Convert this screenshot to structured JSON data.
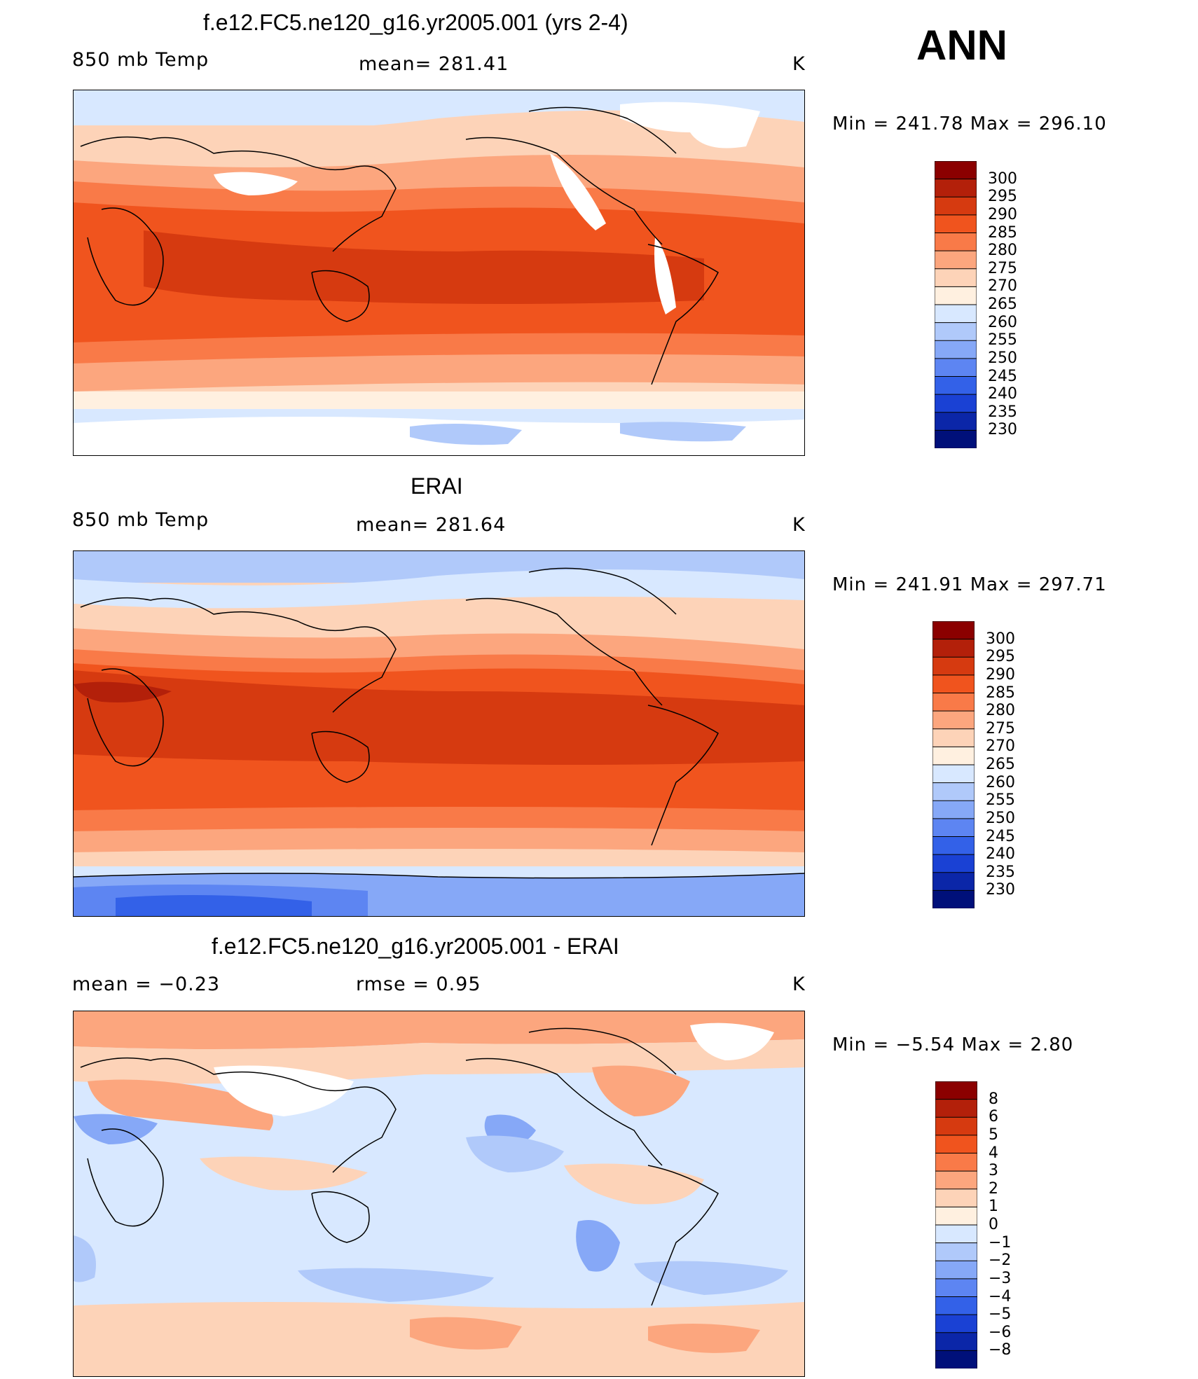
{
  "season": "ANN",
  "units_label": "K",
  "panels": [
    {
      "title": "f.e12.FC5.ne120_g16.yr2005.001 (yrs 2-4)",
      "left_label": "850 mb Temp",
      "center_label": "mean= 281.41",
      "right_label": "K",
      "minmax": "Min = 241.78 Max = 296.10",
      "colorbar_ticks": [
        "300",
        "295",
        "290",
        "285",
        "280",
        "275",
        "270",
        "265",
        "260",
        "255",
        "250",
        "245",
        "240",
        "235",
        "230"
      ],
      "colorbar_colors": [
        "#8b0000",
        "#b3200a",
        "#d63a10",
        "#f0541e",
        "#f97a48",
        "#fca67e",
        "#fdd3b8",
        "#fff0e0",
        "#d8e8ff",
        "#b0c9fa",
        "#86a8f7",
        "#5d85f2",
        "#3361e8",
        "#1a41d4",
        "#0b26a8",
        "#00107a"
      ]
    },
    {
      "title": "ERAI",
      "left_label": "850 mb Temp",
      "center_label": "mean= 281.64",
      "right_label": "K",
      "minmax": "Min = 241.91 Max = 297.71",
      "colorbar_ticks": [
        "300",
        "295",
        "290",
        "285",
        "280",
        "275",
        "270",
        "265",
        "260",
        "255",
        "250",
        "245",
        "240",
        "235",
        "230"
      ],
      "colorbar_colors": [
        "#8b0000",
        "#b3200a",
        "#d63a10",
        "#f0541e",
        "#f97a48",
        "#fca67e",
        "#fdd3b8",
        "#fff0e0",
        "#d8e8ff",
        "#b0c9fa",
        "#86a8f7",
        "#5d85f2",
        "#3361e8",
        "#1a41d4",
        "#0b26a8",
        "#00107a"
      ]
    },
    {
      "title": "f.e12.FC5.ne120_g16.yr2005.001 - ERAI",
      "left_label": "mean =   −0.23",
      "center_label": "rmse =    0.95",
      "right_label": "K",
      "minmax": "Min =   −5.54 Max =     2.80",
      "colorbar_ticks": [
        "8",
        "6",
        "5",
        "4",
        "3",
        "2",
        "1",
        "0",
        "−1",
        "−2",
        "−3",
        "−4",
        "−5",
        "−6",
        "−8"
      ],
      "colorbar_colors": [
        "#8b0000",
        "#b3200a",
        "#d63a10",
        "#f0541e",
        "#f97a48",
        "#fca67e",
        "#fdd3b8",
        "#fff0e0",
        "#d8e8ff",
        "#b0c9fa",
        "#86a8f7",
        "#5d85f2",
        "#3361e8",
        "#1a41d4",
        "#0b26a8",
        "#00107a"
      ]
    }
  ],
  "chart_data": [
    {
      "type": "heatmap",
      "title": "f.e12.FC5.ne120_g16.yr2005.001 (yrs 2-4)",
      "variable": "850 mb Temp",
      "units": "K",
      "mean": 281.41,
      "min": 241.78,
      "max": 296.1,
      "levels": [
        230,
        235,
        240,
        245,
        250,
        255,
        260,
        265,
        270,
        275,
        280,
        285,
        290,
        295,
        300
      ]
    },
    {
      "type": "heatmap",
      "title": "ERAI",
      "variable": "850 mb Temp",
      "units": "K",
      "mean": 281.64,
      "min": 241.91,
      "max": 297.71,
      "levels": [
        230,
        235,
        240,
        245,
        250,
        255,
        260,
        265,
        270,
        275,
        280,
        285,
        290,
        295,
        300
      ]
    },
    {
      "type": "heatmap",
      "title": "f.e12.FC5.ne120_g16.yr2005.001 - ERAI",
      "units": "K",
      "mean": -0.23,
      "rmse": 0.95,
      "min": -5.54,
      "max": 2.8,
      "levels": [
        -8,
        -6,
        -5,
        -4,
        -3,
        -2,
        -1,
        0,
        1,
        2,
        3,
        4,
        5,
        6,
        8
      ]
    }
  ]
}
